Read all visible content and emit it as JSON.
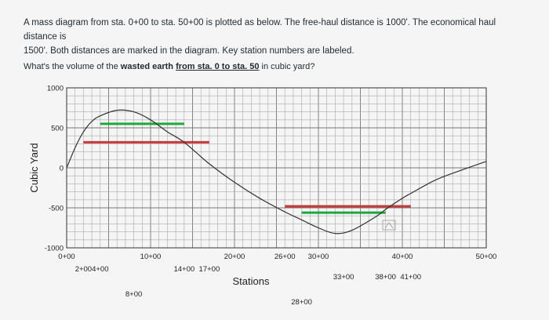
{
  "question": {
    "line1": "A mass diagram from sta. 0+00 to sta. 50+00 is plotted as below. The free-haul distance is 1000'. The economical haul distance is",
    "line2": "1500'. Both distances are marked in the diagram. Key station numbers are labeled.",
    "prompt_start": "What's the volume of the ",
    "prompt_bold": "wasted earth",
    "prompt_mid": " ",
    "prompt_underline": "from sta. 0 to sta. 50",
    "prompt_end": " in cubic yard?"
  },
  "chart_data": {
    "type": "line",
    "xlabel": "Stations",
    "ylabel": "Cubic Yard",
    "xlim": [
      0,
      5000
    ],
    "ylim": [
      -1000,
      1000
    ],
    "y_ticks": [
      1000,
      500,
      0,
      -500,
      -1000
    ],
    "y_tick_labels": [
      "1000",
      "500",
      "0",
      "-500",
      "-1000"
    ],
    "station_labels": [
      {
        "text": "0+00",
        "x": 0,
        "row": 0
      },
      {
        "text": "2+00",
        "x": 200,
        "row": 1
      },
      {
        "text": "4+00",
        "x": 400,
        "row": 1
      },
      {
        "text": "8+00",
        "x": 800,
        "row": 3
      },
      {
        "text": "10+00",
        "x": 1000,
        "row": 0
      },
      {
        "text": "14+00",
        "x": 1400,
        "row": 1
      },
      {
        "text": "17+00",
        "x": 1700,
        "row": 1
      },
      {
        "text": "20+00",
        "x": 2000,
        "row": 0
      },
      {
        "text": "26+00",
        "x": 2600,
        "row": 0
      },
      {
        "text": "28+00",
        "x": 2800,
        "row": 4
      },
      {
        "text": "30+00",
        "x": 3000,
        "row": 0
      },
      {
        "text": "33+00",
        "x": 3300,
        "row": 2
      },
      {
        "text": "38+00",
        "x": 3800,
        "row": 2
      },
      {
        "text": "40+00",
        "x": 4000,
        "row": 0
      },
      {
        "text": "41+00",
        "x": 4100,
        "row": 2
      },
      {
        "text": "50+00",
        "x": 5000,
        "row": 0
      }
    ],
    "curve": {
      "x": [
        0,
        100,
        200,
        300,
        400,
        600,
        800,
        1000,
        1200,
        1400,
        1700,
        2000,
        2300,
        2600,
        2800,
        3000,
        3200,
        3400,
        3700,
        3800,
        4000,
        4100,
        4400,
        4700,
        5000
      ],
      "y": [
        0,
        250,
        450,
        580,
        650,
        720,
        700,
        600,
        450,
        320,
        50,
        -180,
        -380,
        -550,
        -650,
        -750,
        -820,
        -780,
        -600,
        -520,
        -380,
        -320,
        -150,
        -30,
        80
      ]
    },
    "haul_lines": [
      {
        "name": "free-haul",
        "color": "#1ea83a",
        "x": [
          400,
          1400
        ],
        "y": 550
      },
      {
        "name": "economical-haul",
        "color": "#c83a3a",
        "x": [
          200,
          1700
        ],
        "y": 320
      },
      {
        "name": "economical-haul",
        "color": "#c83a3a",
        "x": [
          2600,
          4100
        ],
        "y": -480
      },
      {
        "name": "free-haul",
        "color": "#1ea83a",
        "x": [
          2800,
          3800
        ],
        "y": -560
      }
    ],
    "grid": true
  }
}
